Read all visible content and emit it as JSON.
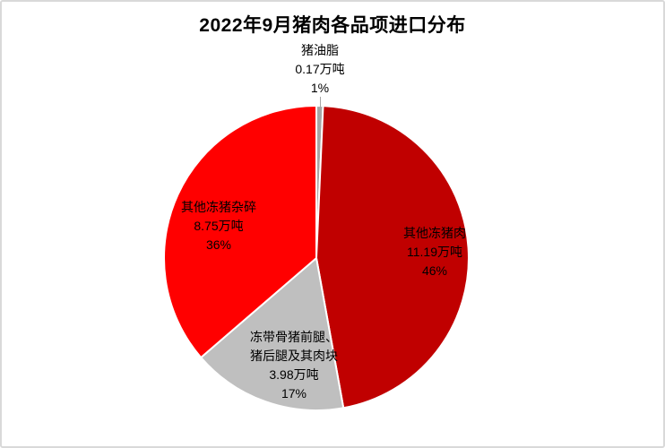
{
  "chart_data": {
    "type": "pie",
    "title": "2022年9月猪肉各品项进口分布",
    "unit": "万吨",
    "start_angle_deg": 0,
    "direction": "clockwise",
    "legend": "none",
    "label_text_color": "#000000",
    "leader_line_color": "#A6A6A6",
    "slices": [
      {
        "key": "lard",
        "name": "猪油脂",
        "name_lines": [
          "猪油脂",
          ""
        ],
        "amount_label": "0.17万吨",
        "percent_label": "1%",
        "value": 0.17,
        "percent": 1,
        "color": "#A6A6A6",
        "label_placement": "outside-top"
      },
      {
        "key": "other-frozen-pork",
        "name": "其他冻猪肉",
        "name_lines": [
          "其他冻猪肉",
          ""
        ],
        "amount_label": "11.19万吨",
        "percent_label": "46%",
        "value": 11.19,
        "percent": 46,
        "color": "#C00000",
        "label_placement": "inside-right"
      },
      {
        "key": "bone-in-front-hind-legs",
        "name": "冻带骨猪前腿、猪后腿及其肉块",
        "name_lines": [
          "冻带骨猪前腿、",
          "猪后腿及其肉块"
        ],
        "amount_label": "3.98万吨",
        "percent_label": "17%",
        "value": 3.98,
        "percent": 17,
        "color": "#BFBFBF",
        "label_placement": "inside-bottom"
      },
      {
        "key": "other-frozen-offal",
        "name": "其他冻猪杂碎",
        "name_lines": [
          "其他冻猪杂碎",
          ""
        ],
        "amount_label": "8.75万吨",
        "percent_label": "36%",
        "value": 8.75,
        "percent": 36,
        "color": "#FF0000",
        "label_placement": "inside-left"
      }
    ]
  }
}
